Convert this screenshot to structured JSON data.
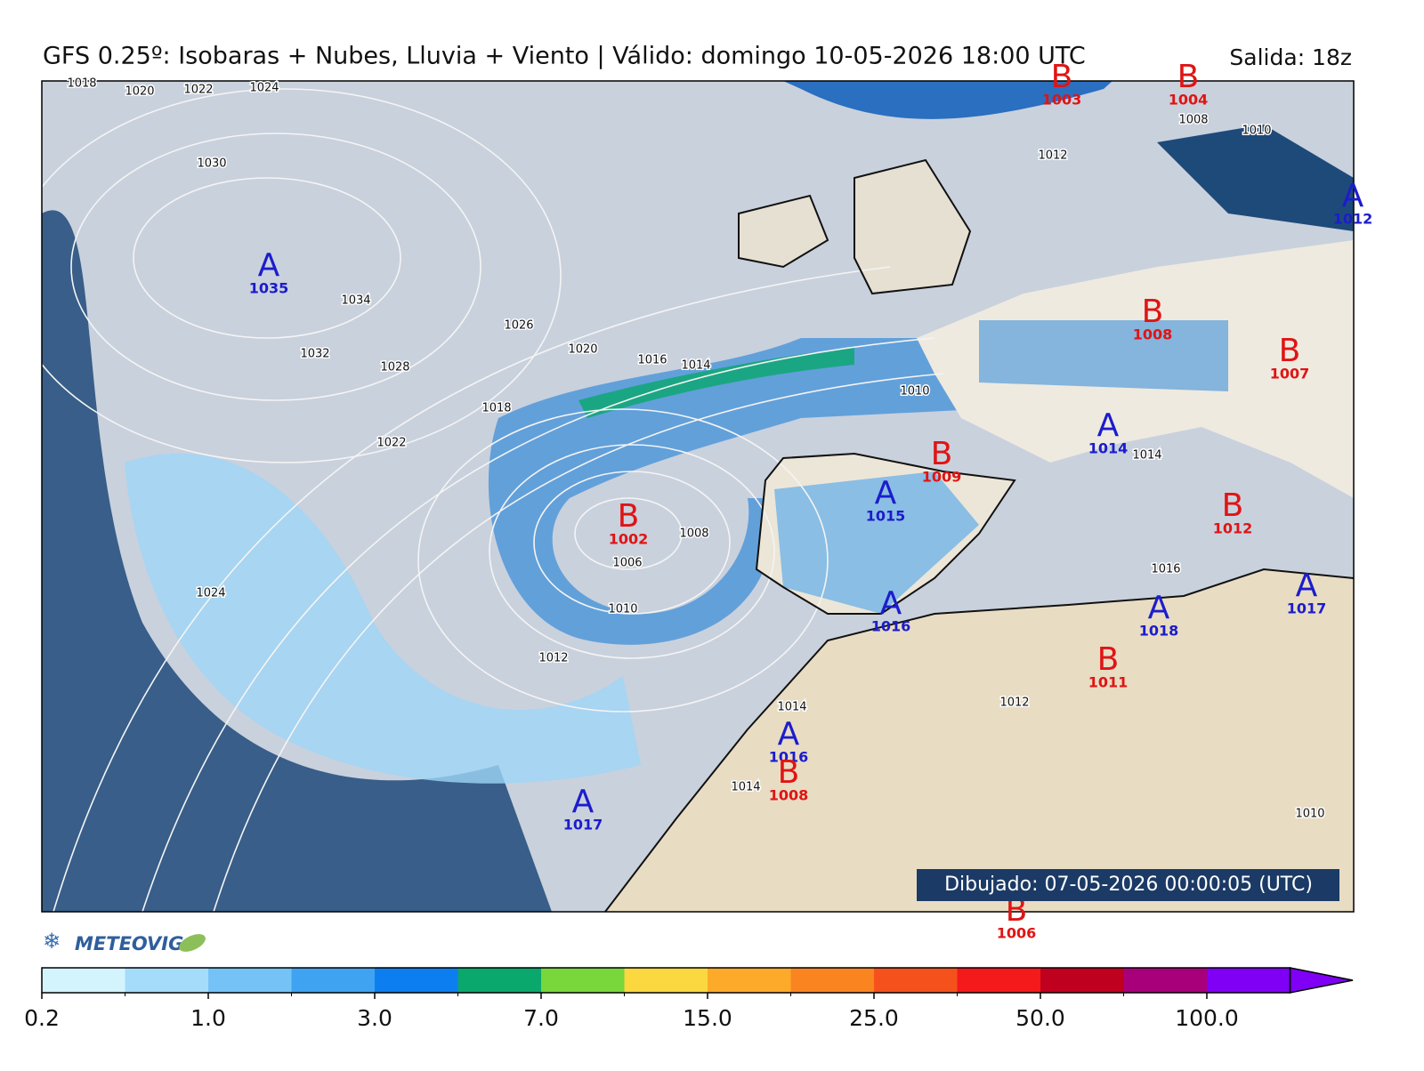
{
  "header": {
    "title": "GFS 0.25º: Isobaras + Nubes, Lluvia + Viento | Válido: domingo 10-05-2026 18:00 UTC",
    "run": "Salida: 18z"
  },
  "map": {
    "center_colors": {
      "A": "#1c1ccc",
      "B": "#e01414"
    },
    "pressure_centers": [
      {
        "type": "A",
        "value": 1035
      },
      {
        "type": "B",
        "value": 1003
      },
      {
        "type": "B",
        "value": 1004
      },
      {
        "type": "A",
        "value": 1012
      },
      {
        "type": "B",
        "value": 1008
      },
      {
        "type": "B",
        "value": 1007
      },
      {
        "type": "A",
        "value": 1014
      },
      {
        "type": "B",
        "value": 1009
      },
      {
        "type": "A",
        "value": 1015
      },
      {
        "type": "B",
        "value": 1002
      },
      {
        "type": "B",
        "value": 1012
      },
      {
        "type": "A",
        "value": 1017
      },
      {
        "type": "A",
        "value": 1016
      },
      {
        "type": "A",
        "value": 1018
      },
      {
        "type": "B",
        "value": 1011
      },
      {
        "type": "A",
        "value": 1016
      },
      {
        "type": "B",
        "value": 1008
      },
      {
        "type": "A",
        "value": 1017
      },
      {
        "type": "B",
        "value": 1006
      }
    ],
    "isobar_labels": [
      1018,
      1020,
      1022,
      1024,
      1030,
      1034,
      1032,
      1028,
      1026,
      1020,
      1016,
      1014,
      1018,
      1022,
      1010,
      1008,
      1006,
      1010,
      1012,
      1024,
      1014,
      1012,
      1010,
      1008,
      1014,
      1016,
      1010,
      1014,
      1012
    ],
    "drawn_label": "Dibujado: 07-05-2026 00:00:05 (UTC)"
  },
  "logo": "METEOVIGO",
  "colorbar": {
    "colors": [
      "#d4f4fd",
      "#a5dcfa",
      "#74c2f6",
      "#3fa3f2",
      "#0c7ef0",
      "#0aa86d",
      "#79d63b",
      "#fbd740",
      "#fdaa2a",
      "#fa8520",
      "#f5511c",
      "#f4191b",
      "#c0001f",
      "#a8007a",
      "#8000f5"
    ],
    "ticks": [
      0.2,
      {
        "value": 1,
        "label": "1.0"
      },
      {
        "value": 3,
        "label": "3.0"
      },
      {
        "value": 7,
        "label": "7.0"
      },
      {
        "value": 15,
        "label": "15.0"
      },
      {
        "value": 25,
        "label": "25.0"
      },
      {
        "value": 50,
        "label": "50.0"
      },
      {
        "value": 100,
        "label": "100.0"
      }
    ]
  }
}
